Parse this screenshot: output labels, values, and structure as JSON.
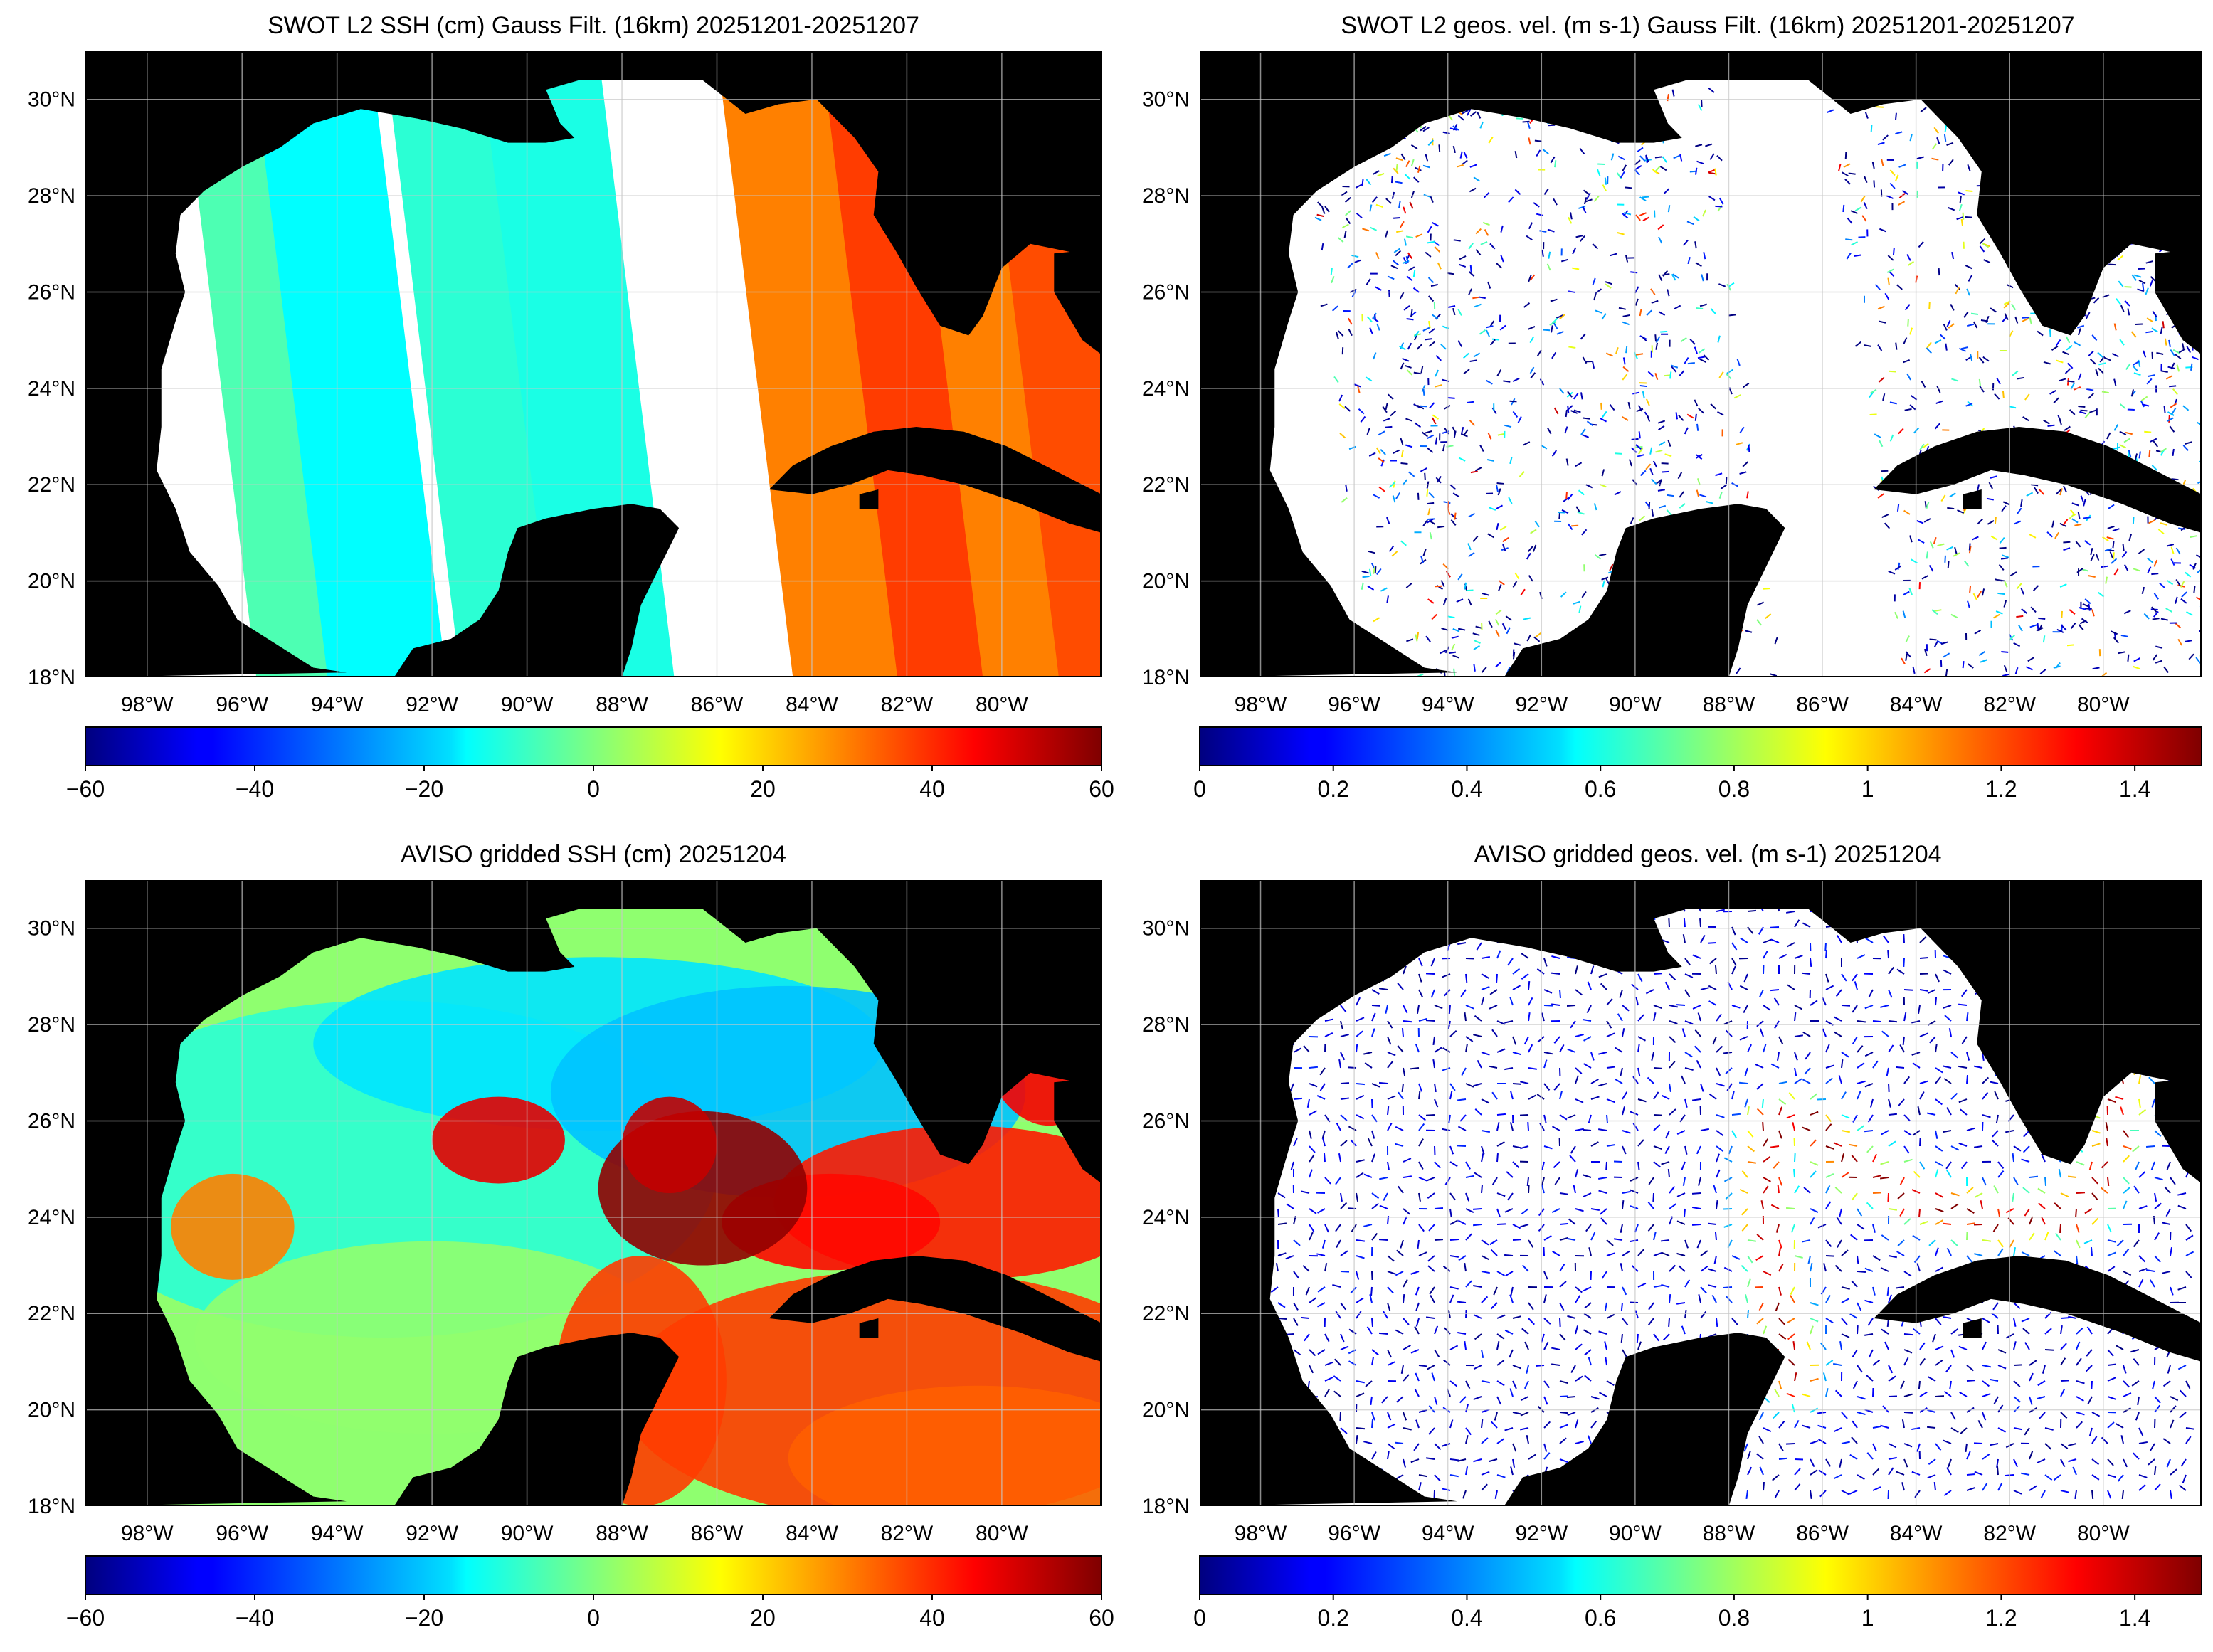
{
  "panels": [
    {
      "id": "swot-ssh",
      "kind": "ssh-swaths",
      "title": "SWOT L2 SSH (cm) Gauss Filt. (16km) 20251201-20251207",
      "colorbar": {
        "min": -60,
        "max": 60,
        "tick_values": [
          -60,
          -40,
          -20,
          0,
          20,
          40,
          60
        ],
        "tick_labels": [
          "−60",
          "−40",
          "−20",
          "0",
          "20",
          "40",
          "60"
        ]
      }
    },
    {
      "id": "swot-vel",
      "kind": "vel-swaths",
      "title": "SWOT L2 geos. vel. (m s-1) Gauss Filt. (16km) 20251201-20251207",
      "colorbar": {
        "min": 0,
        "max": 1.5,
        "tick_values": [
          0,
          0.2,
          0.4,
          0.6,
          0.8,
          1,
          1.2,
          1.4
        ],
        "tick_labels": [
          "0",
          "0.2",
          "0.4",
          "0.6",
          "0.8",
          "1",
          "1.2",
          "1.4"
        ]
      }
    },
    {
      "id": "aviso-ssh",
      "kind": "ssh-full",
      "title": "AVISO gridded SSH (cm) 20251204",
      "colorbar": {
        "min": -60,
        "max": 60,
        "tick_values": [
          -60,
          -40,
          -20,
          0,
          20,
          40,
          60
        ],
        "tick_labels": [
          "−60",
          "−40",
          "−20",
          "0",
          "20",
          "40",
          "60"
        ]
      }
    },
    {
      "id": "aviso-vel",
      "kind": "vel-full",
      "title": "AVISO gridded geos. vel. (m s-1)  20251204",
      "colorbar": {
        "min": 0,
        "max": 1.5,
        "tick_values": [
          0,
          0.2,
          0.4,
          0.6,
          0.8,
          1,
          1.2,
          1.4
        ],
        "tick_labels": [
          "0",
          "0.2",
          "0.4",
          "0.6",
          "0.8",
          "1",
          "1.2",
          "1.4"
        ]
      }
    }
  ],
  "map_extent": {
    "lon_min": -99.3,
    "lon_max": -77.9,
    "lat_min": 18,
    "lat_max": 31
  },
  "lon_ticks": [
    {
      "value": -98,
      "label": "98°W"
    },
    {
      "value": -96,
      "label": "96°W"
    },
    {
      "value": -94,
      "label": "94°W"
    },
    {
      "value": -92,
      "label": "92°W"
    },
    {
      "value": -90,
      "label": "90°W"
    },
    {
      "value": -88,
      "label": "88°W"
    },
    {
      "value": -86,
      "label": "86°W"
    },
    {
      "value": -84,
      "label": "84°W"
    },
    {
      "value": -82,
      "label": "82°W"
    },
    {
      "value": -80,
      "label": "80°W"
    }
  ],
  "lat_ticks": [
    {
      "value": 18,
      "label": "18°N"
    },
    {
      "value": 20,
      "label": "20°N"
    },
    {
      "value": 22,
      "label": "22°N"
    },
    {
      "value": 24,
      "label": "24°N"
    },
    {
      "value": 26,
      "label": "26°N"
    },
    {
      "value": 28,
      "label": "28°N"
    },
    {
      "value": 30,
      "label": "30°N"
    }
  ],
  "colors": {
    "land": "#000000",
    "no_data": "#ffffff",
    "grid": "#c8c8c8",
    "frame": "#000000",
    "colormap": "jet"
  },
  "features": {
    "loop_current_max_cm": 60,
    "eddy_centers": [
      {
        "lon": -90.6,
        "lat": 25.6,
        "ssh_cm": 48
      },
      {
        "lon": -96.2,
        "lat": 23.8,
        "ssh_cm": 30
      },
      {
        "lon": -86.3,
        "lat": 24.6,
        "ssh_cm": 58
      }
    ],
    "gulf_stream_max_ms": 1.5
  }
}
